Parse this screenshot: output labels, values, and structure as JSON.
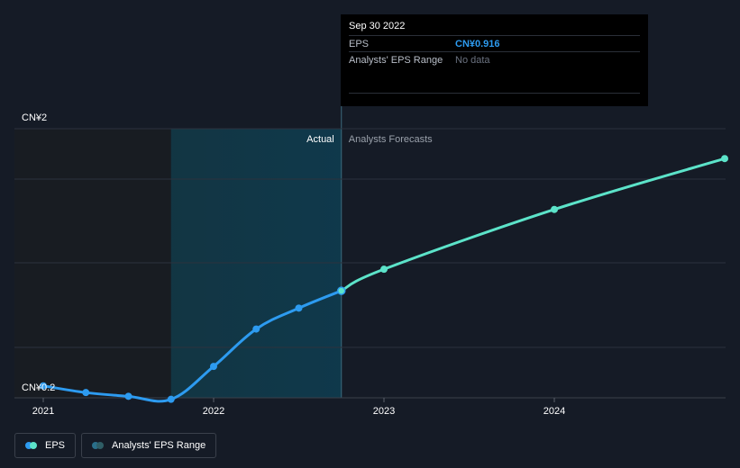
{
  "chart_data": {
    "type": "line",
    "y_labels": [
      "CN¥2",
      "CN¥0.2"
    ],
    "ylim": [
      0.2,
      2.0
    ],
    "x_ticks": [
      "2021",
      "2022",
      "2023",
      "2024"
    ],
    "actual_label": "Actual",
    "forecast_label": "Analysts Forecasts",
    "series": [
      {
        "name": "EPS",
        "kind": "actual",
        "color": "#2d9bf0",
        "points": [
          {
            "x": 2021.0,
            "y": 0.28
          },
          {
            "x": 2021.25,
            "y": 0.235
          },
          {
            "x": 2021.5,
            "y": 0.21
          },
          {
            "x": 2021.75,
            "y": 0.19
          },
          {
            "x": 2022.0,
            "y": 0.41
          },
          {
            "x": 2022.25,
            "y": 0.66
          },
          {
            "x": 2022.5,
            "y": 0.8
          },
          {
            "x": 2022.75,
            "y": 0.916
          }
        ]
      },
      {
        "name": "EPS",
        "kind": "forecast",
        "color": "#5ce3c9",
        "points": [
          {
            "x": 2022.75,
            "y": 0.916
          },
          {
            "x": 2023.0,
            "y": 1.06
          },
          {
            "x": 2024.0,
            "y": 1.46
          },
          {
            "x": 2025.0,
            "y": 1.8
          }
        ]
      }
    ],
    "highlight_range": {
      "from": 2021.75,
      "to": 2022.75
    },
    "grid": true
  },
  "tooltip": {
    "date": "Sep 30 2022",
    "rows": [
      {
        "label": "EPS",
        "value": "CN¥0.916"
      },
      {
        "label": "Analysts' EPS Range",
        "value": "No data"
      }
    ]
  },
  "legend": [
    {
      "label": "EPS",
      "colors": [
        "#2d9bf0",
        "#5ce3c9"
      ]
    },
    {
      "label": "Analysts' EPS Range",
      "colors": [
        "#2a6f8a",
        "#2f5e66"
      ]
    }
  ]
}
